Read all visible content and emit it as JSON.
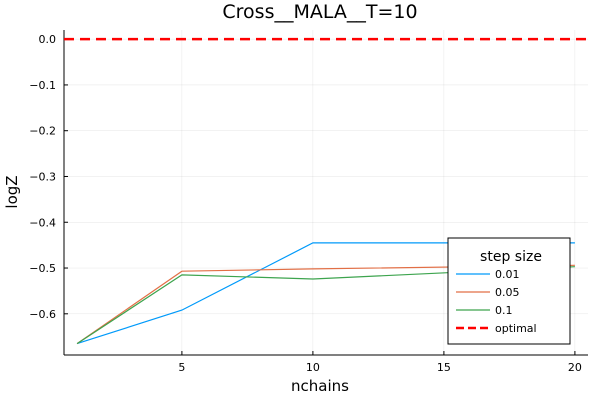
{
  "chart_data": {
    "type": "line",
    "title": "Cross__MALA__T=10",
    "xlabel": "nchains",
    "ylabel": "logZ",
    "x": [
      1,
      5,
      10,
      20
    ],
    "xlim": [
      0.5,
      20.5
    ],
    "ylim": [
      -0.69,
      0.02
    ],
    "xticks": [
      5,
      10,
      15,
      20
    ],
    "yticks": [
      0.0,
      -0.1,
      -0.2,
      -0.3,
      -0.4,
      -0.5,
      -0.6
    ],
    "xtick_labels": [
      "5",
      "10",
      "15",
      "20"
    ],
    "ytick_labels": [
      "0.0",
      "−0.1",
      "−0.2",
      "−0.3",
      "−0.4",
      "−0.5",
      "−0.6"
    ],
    "grid": true,
    "legend": {
      "title": "step size",
      "placement": "bottom-right"
    },
    "series": [
      {
        "name": "0.01",
        "color": "#009AFA",
        "style": "solid",
        "values": [
          -0.665,
          -0.592,
          -0.445,
          -0.445
        ]
      },
      {
        "name": "0.05",
        "color": "#E26F46",
        "style": "solid",
        "values": [
          -0.665,
          -0.507,
          -0.502,
          -0.494
        ]
      },
      {
        "name": "0.1",
        "color": "#3DA44E",
        "style": "solid",
        "values": [
          -0.665,
          -0.515,
          -0.524,
          -0.497
        ]
      }
    ],
    "reference_line": {
      "name": "optimal",
      "y": 0.0,
      "color": "#FF0000",
      "style": "dashed"
    }
  }
}
